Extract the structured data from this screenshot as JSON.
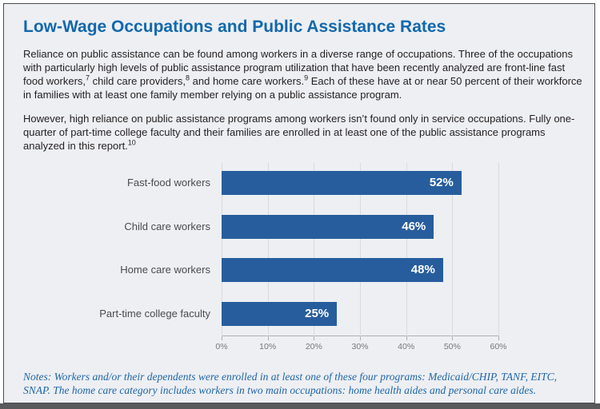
{
  "figure": {
    "title": "Low-Wage Occupations and Public Assistance Rates",
    "title_color": "#1268ac",
    "para1": {
      "t1": "Reliance on public assistance can be found among workers in a diverse range of occupations. Three of the occupations with particularly high levels of public assistance program utilization that have been recently analyzed are front-line fast food workers,",
      "s1": "7",
      "t2": " child care providers,",
      "s2": "8",
      "t3": " and home care workers.",
      "s3": "9",
      "t4": " Each of these have at or near 50 percent of their workforce in families with at least one family member relying on a public assistance program."
    },
    "para2": {
      "t1": "However, high reliance on public assistance programs among workers isn’t found only in service occupations. Fully one-quarter of part-time college faculty and their families are enrolled in at least one of the public assistance programs analyzed in this report.",
      "s1": "10"
    },
    "notes": "Notes: Workers and/or their dependents were enrolled in at least one of these four programs: Medicaid/CHIP, TANF, EITC, SNAP. The home care category includes workers in two main occupations: home health aides and personal care aides."
  },
  "chart_data": {
    "type": "bar",
    "orientation": "horizontal",
    "categories": [
      "Fast-food workers",
      "Child care workers",
      "Home care workers",
      "Part-time college faculty"
    ],
    "values": [
      52,
      46,
      48,
      25
    ],
    "value_labels": [
      "52%",
      "46%",
      "48%",
      "25%"
    ],
    "x_ticks": [
      "0%",
      "10%",
      "20%",
      "30%",
      "40%",
      "50%",
      "60%"
    ],
    "xlim": [
      0,
      60
    ],
    "grid": true,
    "legend": "none",
    "bar_color": "#275d9d",
    "value_label_color": "#ffffff",
    "background_color": "#edeff3"
  }
}
